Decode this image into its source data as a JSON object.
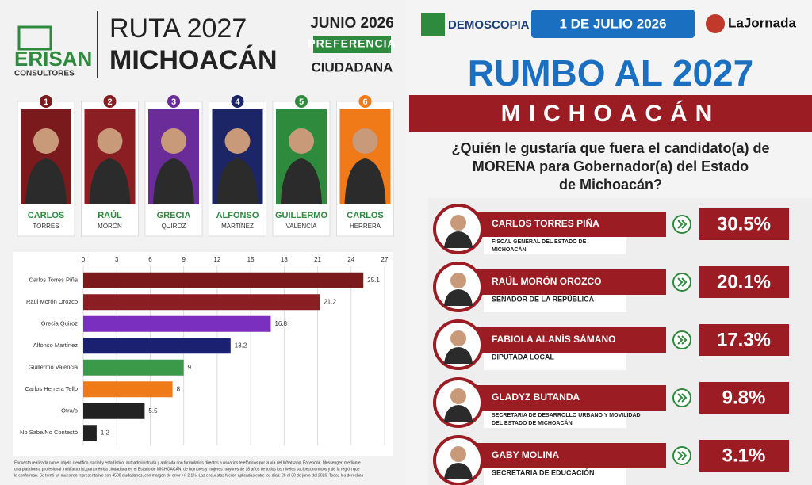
{
  "left": {
    "logo": "ERISAN",
    "logo_sub": "CONSULTORES",
    "title_1": "RUTA 2027",
    "title_2": "MICHOACÁN",
    "date": "JUNIO 2026",
    "badge": "PREFERENCIA",
    "subtitle": "CIUDADANA",
    "candidates": [
      {
        "number": "1",
        "first": "CARLOS",
        "last": "TORRES",
        "color": "#7a1a1c"
      },
      {
        "number": "2",
        "first": "RAÚL",
        "last": "MORÓN",
        "color": "#8b1e22"
      },
      {
        "number": "3",
        "first": "GRECIA",
        "last": "QUIROZ",
        "color": "#6a2c98"
      },
      {
        "number": "4",
        "first": "ALFONSO",
        "last": "MARTÍNEZ",
        "color": "#1c2566"
      },
      {
        "number": "5",
        "first": "GUILLERMO",
        "last": "VALENCIA",
        "color": "#2e8b3e"
      },
      {
        "number": "6",
        "first": "CARLOS",
        "last": "HERRERA",
        "color": "#f07a18"
      }
    ],
    "footnote": [
      "Encuesta realizada con el objeto científico, social y estadístico, autoadministrada y aplicada con formularios directos a usuarios telefónicos por la vía del Whatsapp, Facebook, Messenger, mediante",
      "una plataforma profesional multifactorial, paramétrica ciudadana en el Estado de MICHOACÁN, de hombres y mujeres mayores de 18 años de todos los niveles socioeconómicos y de la región que",
      "la conforman. Se tomó un muestreo representativo con 4500 ciudadanos, con margen de error +/- 2.1%. Las encuestas fueron aplicadas entre los días: 26 al 30 de junio del 2026. Todos los derechos"
    ]
  },
  "chart_data": {
    "type": "bar",
    "categories": [
      "Carlos Torres Piña",
      "Raúl Morón Orozco",
      "Grecia Quiroz",
      "Alfonso Martínez",
      "Guillermo Valencia",
      "Carlos Herrera Tello",
      "Otra/o",
      "No Sabe/No Contestó"
    ],
    "values": [
      25.1,
      21.2,
      16.8,
      13.2,
      9,
      8,
      5.5,
      1.2
    ],
    "colors": [
      "#7a1a1c",
      "#8b1e22",
      "#7b2fbe",
      "#1c2070",
      "#3a9a4a",
      "#f07a18",
      "#222222",
      "#222222"
    ],
    "xlim": [
      0,
      27
    ],
    "xticks": [
      0,
      3,
      6,
      9,
      12,
      15,
      18,
      21,
      24,
      27
    ],
    "grid": true
  },
  "right": {
    "brand": "DEMOSCOPIA",
    "date": "1 DE JULIO 2026",
    "paper": "LaJornada",
    "title": "RUMBO AL 2027",
    "state": "MICHOACÁN",
    "question": [
      "¿Quién le gustaría que fuera el candidato(a) de",
      "MORENA para Gobernador(a) del Estado",
      "de Michoacán?"
    ],
    "rows": [
      {
        "name": "CARLOS TORRES PIÑA",
        "role": [
          "FISCAL GENERAL DEL ESTADO DE",
          "MICHOACÁN"
        ],
        "pct": "30.5%"
      },
      {
        "name": "RAÚL MORÓN OROZCO",
        "role": [
          "SENADOR DE LA REPÚBLICA"
        ],
        "pct": "20.1%"
      },
      {
        "name": "FABIOLA ALANÍS SÁMANO",
        "role": [
          "DIPUTADA LOCAL"
        ],
        "pct": "17.3%"
      },
      {
        "name": "GLADYZ BUTANDA",
        "role": [
          "SECRETARIA DE DESARROLLO URBANO Y MOVILIDAD",
          "DEL ESTADO DE MICHOACÁN"
        ],
        "pct": "9.8%"
      },
      {
        "name": "GABY MOLINA",
        "role": [
          "SECRETARIA DE EDUCACIÓN"
        ],
        "pct": "3.1%"
      }
    ]
  }
}
